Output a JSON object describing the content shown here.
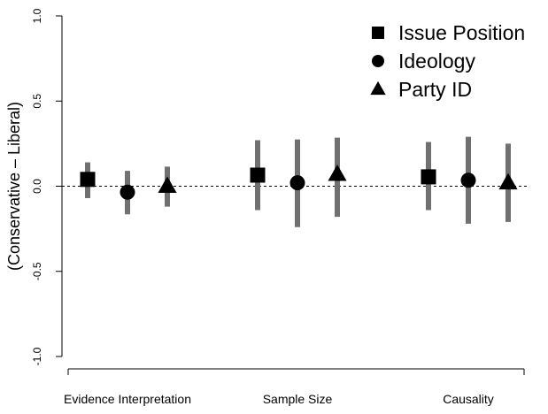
{
  "chart_data": {
    "type": "scatter",
    "title": "",
    "xlabel": "",
    "ylabel": "(Conservative – Liberal)",
    "ylim": [
      -1.0,
      1.0
    ],
    "yticks": [
      "-1.0",
      "-0.5",
      "0.0",
      "0.5",
      "1.0"
    ],
    "categories": [
      "Evidence Interpretation",
      "Sample Size",
      "Causality"
    ],
    "reference_line": 0,
    "legend_position": "top-right",
    "series": [
      {
        "name": "Issue Position",
        "marker": "square",
        "values": [
          0.04,
          0.065,
          0.055
        ],
        "lower": [
          -0.07,
          -0.14,
          -0.14
        ],
        "upper": [
          0.14,
          0.27,
          0.26
        ]
      },
      {
        "name": "Ideology",
        "marker": "circle",
        "values": [
          -0.035,
          0.02,
          0.035
        ],
        "lower": [
          -0.165,
          -0.24,
          -0.22
        ],
        "upper": [
          0.09,
          0.275,
          0.29
        ]
      },
      {
        "name": "Party ID",
        "marker": "triangle",
        "values": [
          0.0,
          0.07,
          0.02
        ],
        "lower": [
          -0.12,
          -0.18,
          -0.21
        ],
        "upper": [
          0.115,
          0.285,
          0.25
        ]
      }
    ],
    "colors": {
      "interval": "#707070",
      "marker": "#000000",
      "reference": "#000000"
    }
  }
}
